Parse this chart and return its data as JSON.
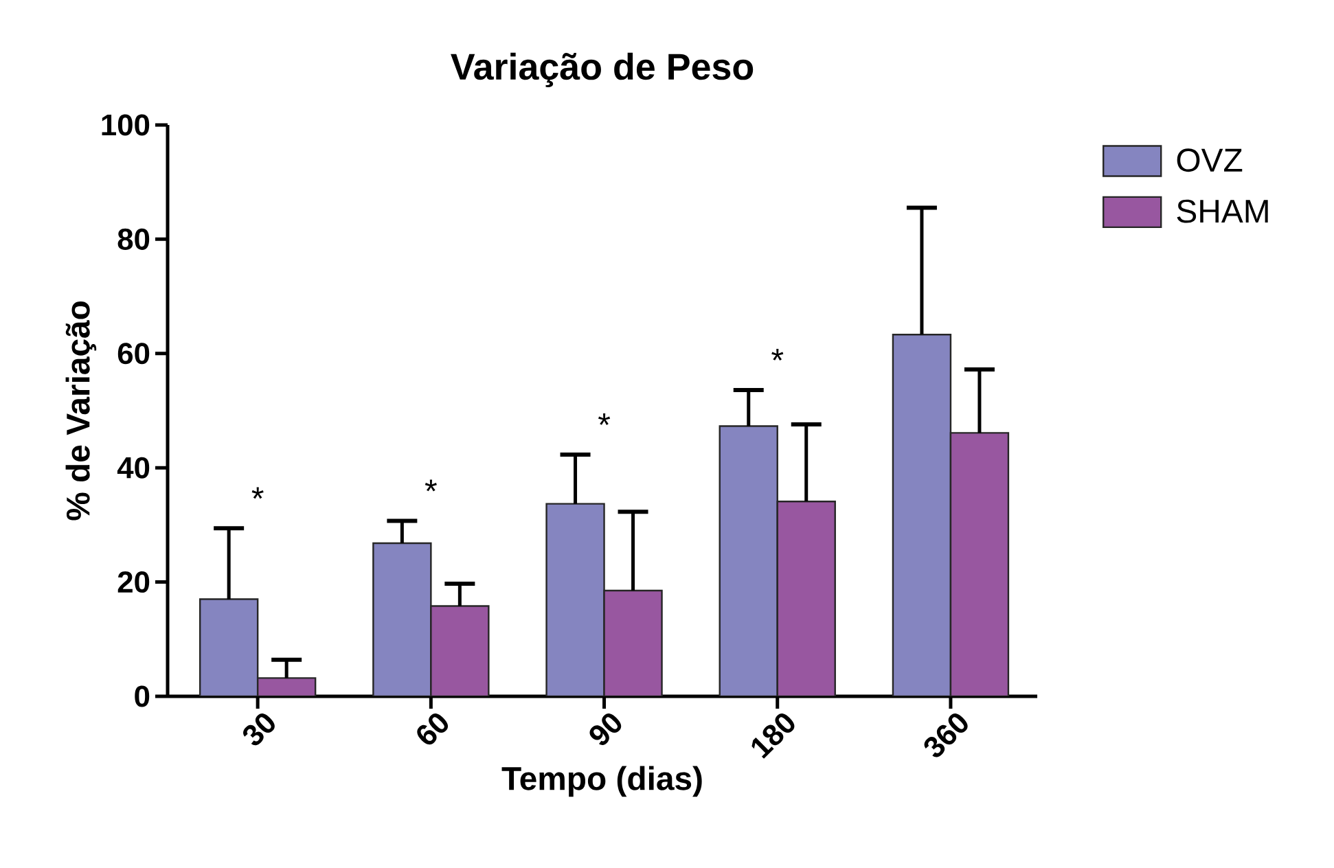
{
  "chart_data": {
    "type": "bar",
    "title": "Variação de Peso",
    "xlabel": "Tempo (dias)",
    "ylabel": "% de Variação",
    "categories": [
      "30",
      "60",
      "90",
      "180",
      "360"
    ],
    "series": [
      {
        "name": "OVZ",
        "color": "#8585c0",
        "values": [
          17,
          26.8,
          33.7,
          47.3,
          63.3
        ],
        "errors": [
          12.4,
          3.9,
          8.6,
          6.3,
          22.2
        ]
      },
      {
        "name": "SHAM",
        "color": "#9857a0",
        "values": [
          3.2,
          15.8,
          18.5,
          34.1,
          46.1
        ],
        "errors": [
          3.2,
          3.9,
          13.8,
          13.5,
          11.1
        ]
      }
    ],
    "ylim": [
      0,
      100
    ],
    "yticks": [
      0,
      20,
      40,
      60,
      80,
      100
    ],
    "grid": false,
    "legend": "top right",
    "annotations": [
      "*",
      "*",
      "*",
      "*"
    ]
  }
}
